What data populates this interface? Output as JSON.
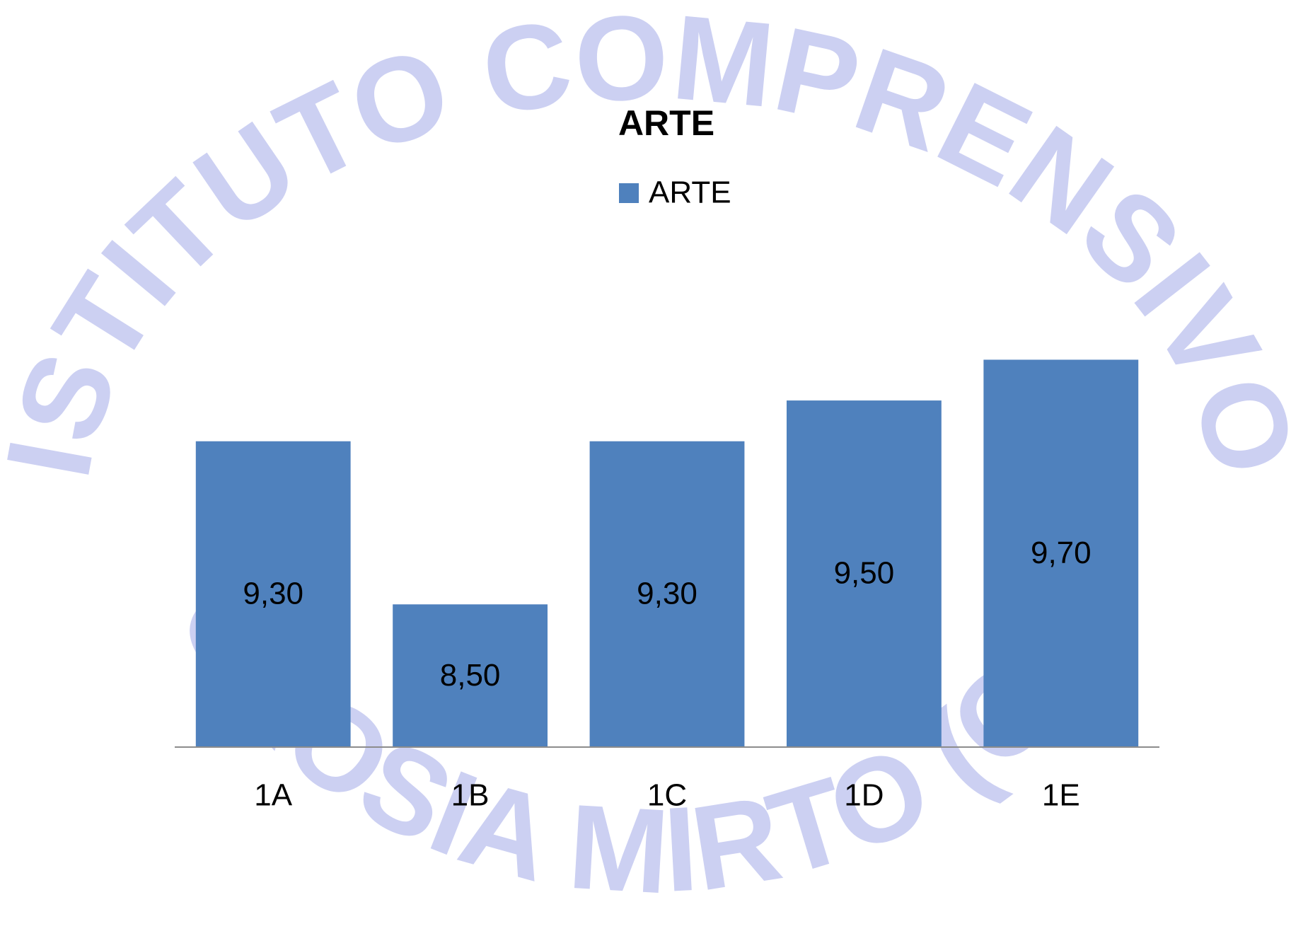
{
  "chart_data": {
    "type": "bar",
    "title": "ARTE",
    "watermark_top": "ISTITUTO COMPRENSIVO",
    "watermark_bottom": "CROSIA MIRTO (CS)",
    "categories": [
      "1A",
      "1B",
      "1C",
      "1D",
      "1E"
    ],
    "series": [
      {
        "name": "ARTE",
        "color": "#4f81bd",
        "values": [
          9.3,
          8.5,
          9.3,
          9.5,
          9.7
        ],
        "value_labels": [
          "9,30",
          "8,50",
          "9,30",
          "9,50",
          "9,70"
        ]
      }
    ],
    "ylim": [
      7.8,
      10
    ],
    "legend": "top"
  }
}
